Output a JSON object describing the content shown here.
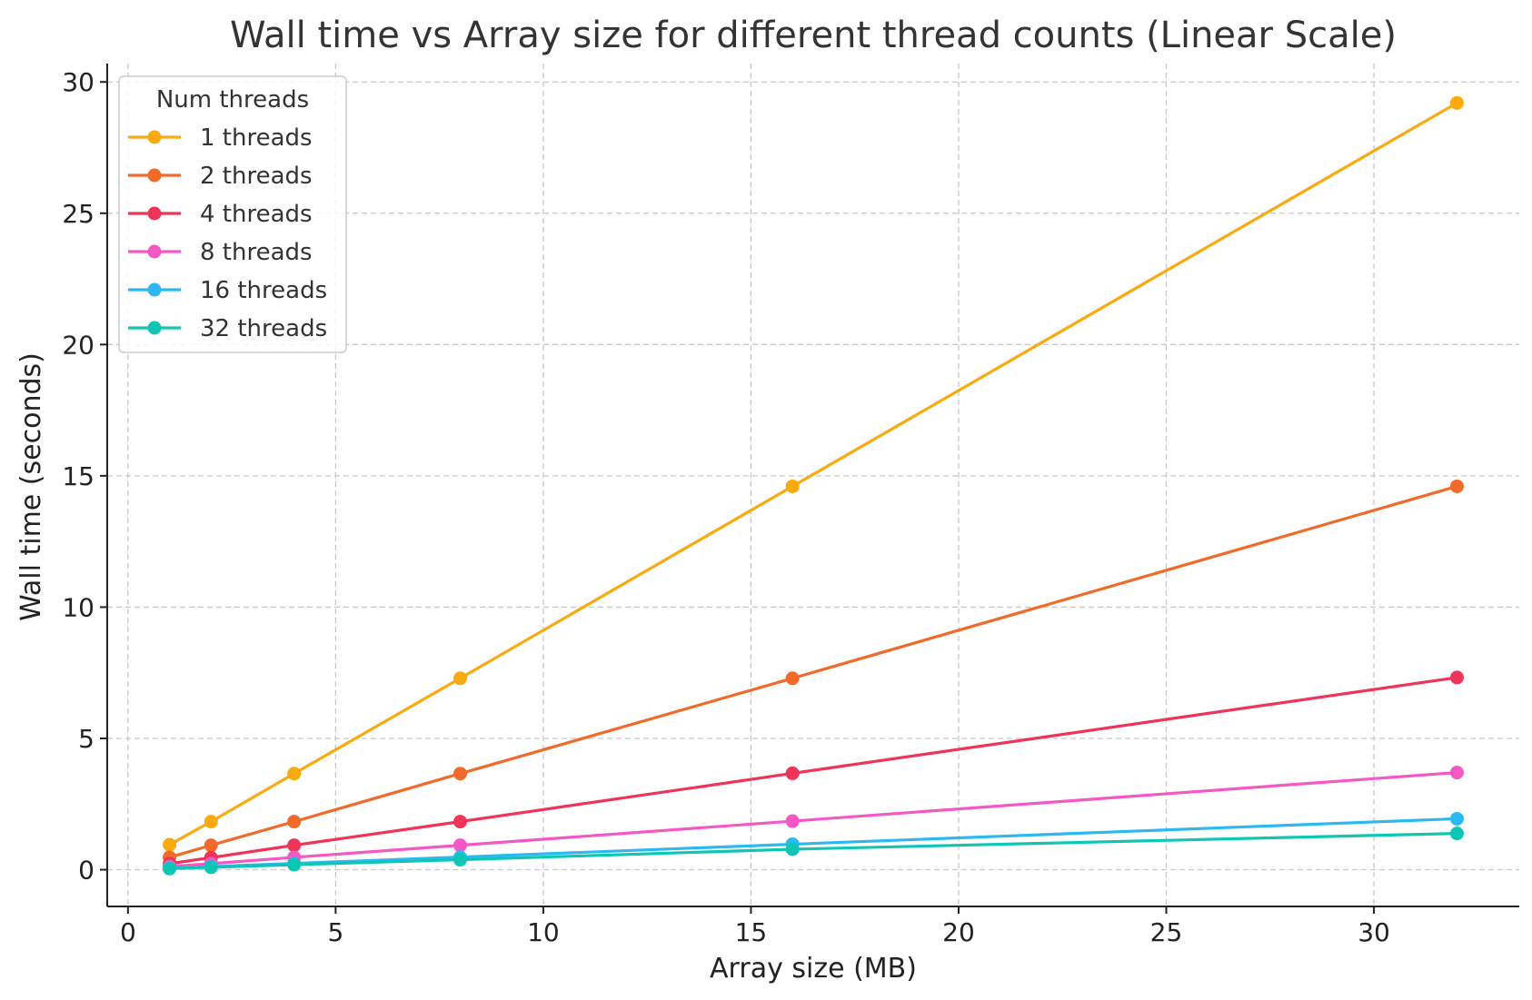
{
  "chart_data": {
    "type": "line",
    "title": "Wall time vs Array size for different thread counts (Linear Scale)",
    "xlabel": "Array size (MB)",
    "ylabel": "Wall time (seconds)",
    "xlim": [
      -0.5,
      33.5
    ],
    "ylim": [
      -1.4,
      30.7
    ],
    "xticks": [
      0,
      5,
      10,
      15,
      20,
      25,
      30
    ],
    "yticks": [
      0,
      5,
      10,
      15,
      20,
      25,
      30
    ],
    "grid": true,
    "legend": {
      "title": "Num threads",
      "position": "top-left"
    },
    "x": [
      1,
      2,
      4,
      8,
      16,
      32
    ],
    "series": [
      {
        "name": "1 threads",
        "color": "#F9AA0E",
        "values": [
          0.95,
          1.83,
          3.66,
          7.29,
          14.6,
          29.2
        ]
      },
      {
        "name": "2 threads",
        "color": "#F26A2A",
        "values": [
          0.47,
          0.93,
          1.83,
          3.66,
          7.29,
          14.6
        ]
      },
      {
        "name": "4 threads",
        "color": "#EE3459",
        "values": [
          0.23,
          0.46,
          0.93,
          1.83,
          3.67,
          7.32
        ]
      },
      {
        "name": "8 threads",
        "color": "#F557C5",
        "values": [
          0.12,
          0.23,
          0.47,
          0.93,
          1.85,
          3.7
        ]
      },
      {
        "name": "16 threads",
        "color": "#2CB8F2",
        "values": [
          0.06,
          0.12,
          0.24,
          0.48,
          0.97,
          1.94
        ]
      },
      {
        "name": "32 threads",
        "color": "#0FC6B4",
        "values": [
          0.04,
          0.09,
          0.19,
          0.38,
          0.78,
          1.38
        ]
      }
    ]
  }
}
